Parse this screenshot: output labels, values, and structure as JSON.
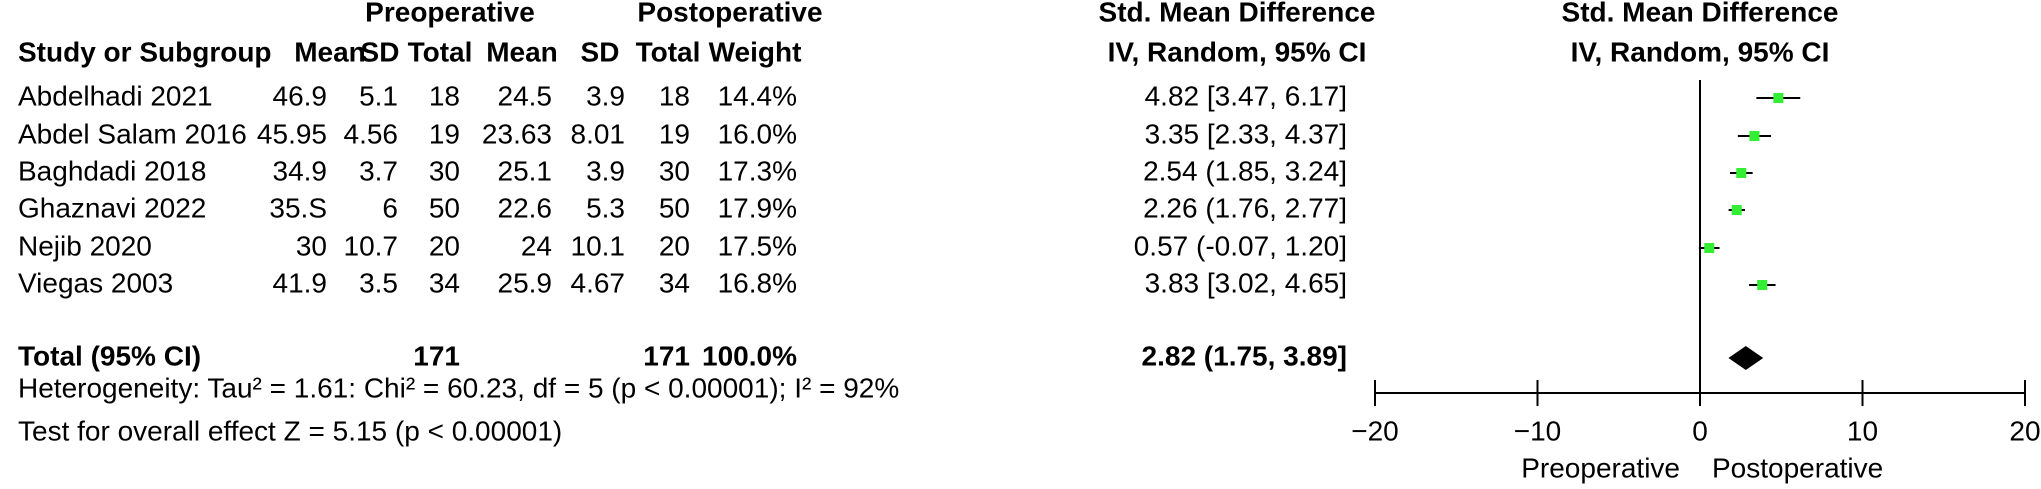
{
  "chart_data": {
    "type": "forest",
    "group_headers": [
      "Preoperative",
      "Postoperative",
      "Std. Mean Difference",
      "Std. Mean Difference"
    ],
    "method_headers": [
      "IV, Random, 95% CI",
      "IV, Random, 95% CI"
    ],
    "columns": [
      "Study or Subgroup",
      "Mean",
      "SD",
      "Total",
      "Mean",
      "SD",
      "Total",
      "Weight"
    ],
    "categories": [
      "Abdelhadi 2021",
      "Abdel Salam 2016",
      "Baghdadi 2018",
      "Ghaznavi 2022",
      "Nejib 2020",
      "Viegas 2003"
    ],
    "rows": [
      [
        "46.9",
        "5.1",
        "18",
        "24.5",
        "3.9",
        "18",
        "14.4%"
      ],
      [
        "45.95",
        "4.56",
        "19",
        "23.63",
        "8.01",
        "19",
        "16.0%"
      ],
      [
        "34.9",
        "3.7",
        "30",
        "25.1",
        "3.9",
        "30",
        "17.3%"
      ],
      [
        "35.S",
        "6",
        "50",
        "22.6",
        "5.3",
        "50",
        "17.9%"
      ],
      [
        "30",
        "10.7",
        "20",
        "24",
        "10.1",
        "20",
        "17.5%"
      ],
      [
        "41.9",
        "3.5",
        "34",
        "25.9",
        "4.67",
        "34",
        "16.8%"
      ]
    ],
    "values": [
      4.82,
      3.35,
      2.54,
      2.26,
      0.57,
      3.83
    ],
    "ci_low": [
      3.47,
      2.33,
      1.85,
      1.76,
      -0.07,
      3.02
    ],
    "ci_high": [
      6.17,
      4.37,
      3.24,
      2.77,
      1.2,
      4.65
    ],
    "value_labels": [
      "4.82 [3.47, 6.17]",
      "3.35 [2.33, 4.37]",
      "2.54 (1.85, 3.24]",
      "2.26 (1.76, 2.77]",
      "0.57 (-0.07, 1.20]",
      "3.83 [3.02, 4.65]"
    ],
    "color": "#33ee33",
    "total": {
      "label": "Total (95% CI)",
      "pre_total": "171",
      "post_total": "171",
      "weight": "100.0%",
      "value": 2.82,
      "ci_low": 1.75,
      "ci_high": 3.89,
      "value_label": "2.82 (1.75, 3.89]"
    },
    "heterogeneity": "Heterogeneity: Tau² = 1.61: Chi² = 60.23, df = 5 (p < 0.00001); I² = 92%",
    "overall_effect": "Test for overall effect Z = 5.15 (p < 0.00001)",
    "xlim": [
      -20,
      20
    ],
    "xticks": [
      {
        "value": -20,
        "label": "−20"
      },
      {
        "value": -10,
        "label": "−10"
      },
      0,
      10,
      20
    ],
    "x_left_label": "Preoperative",
    "x_right_label": "Postoperative"
  }
}
